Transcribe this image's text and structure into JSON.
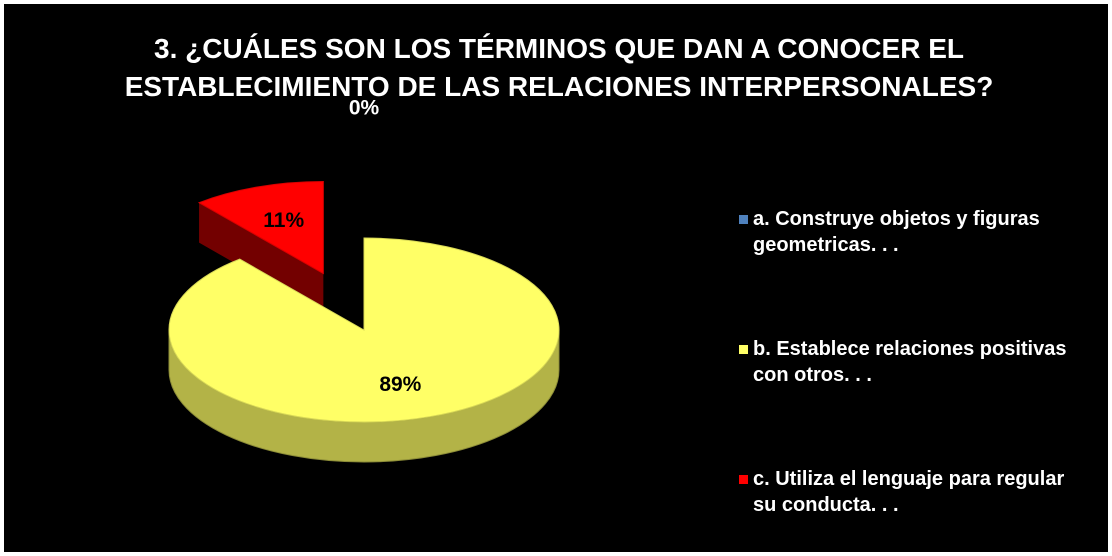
{
  "chart_data": {
    "type": "pie",
    "title": "3. ¿CUÁLES SON LOS TÉRMINOS QUE DAN A CONOCER EL ESTABLECIMIENTO DE LAS RELACIONES INTERPERSONALES?",
    "categories": [
      "a. Construye objetos y figuras geometricas. . .",
      "b. Establece relaciones positivas con otros. . .",
      "c. Utiliza el lenguaje para regular su conducta. . ."
    ],
    "values": [
      0,
      89,
      11
    ],
    "value_labels": [
      "0%",
      "89%",
      "11%"
    ],
    "colors": [
      "#4f81bd",
      "#ffff66",
      "#ff0000"
    ],
    "legend": "right"
  }
}
